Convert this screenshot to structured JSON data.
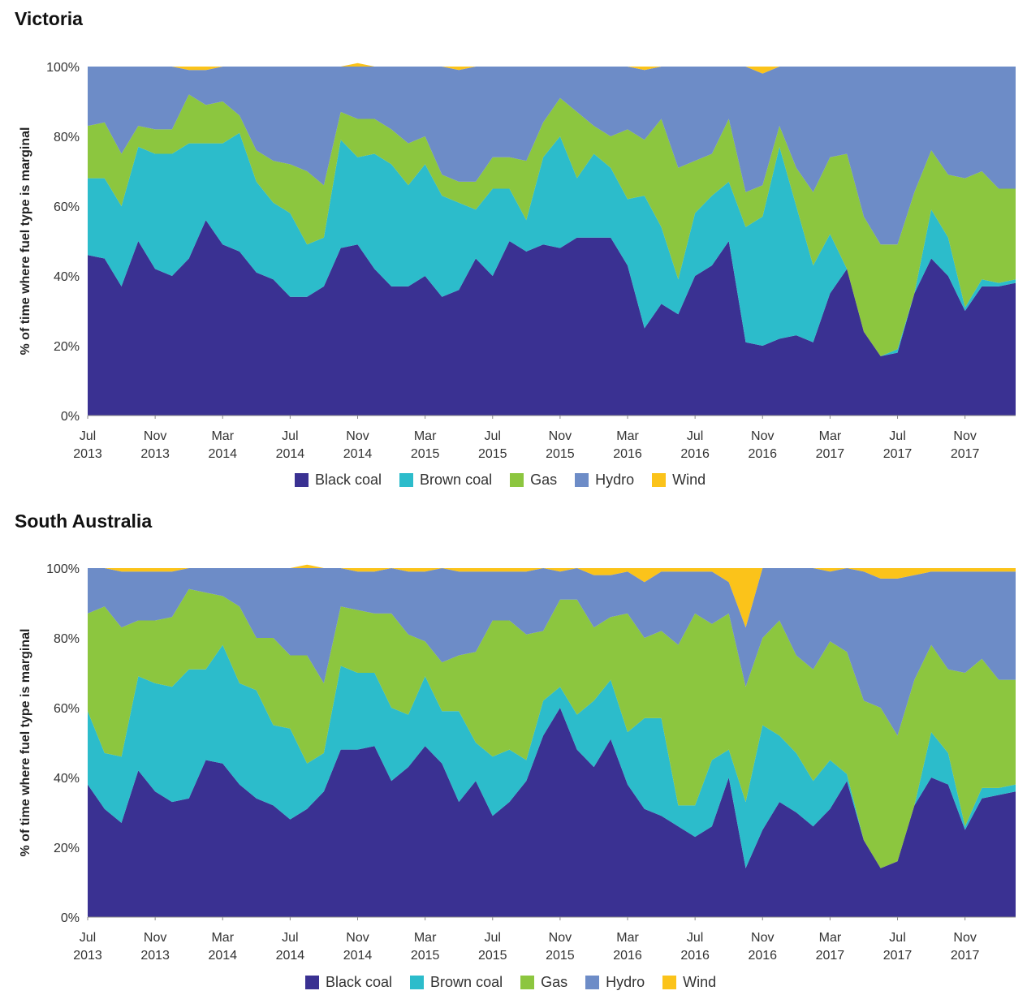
{
  "colors": {
    "Black coal": "#3a3192",
    "Brown coal": "#2cbccb",
    "Gas": "#8cc63f",
    "Hydro": "#6d8cc7",
    "Wind": "#fbc31a"
  },
  "panels": [
    {
      "title": "Victoria"
    },
    {
      "title": "South Australia"
    }
  ],
  "chart_data": [
    {
      "type": "area",
      "title": "Victoria",
      "ylabel": "% of time where fuel type is marginal",
      "ylim": [
        0,
        100
      ],
      "yticks": [
        "0%",
        "20%",
        "40%",
        "60%",
        "80%",
        "100%"
      ],
      "xticks": [
        {
          "month": "Jul",
          "year": "2013"
        },
        {
          "month": "Nov",
          "year": "2013"
        },
        {
          "month": "Mar",
          "year": "2014"
        },
        {
          "month": "Jul",
          "year": "2014"
        },
        {
          "month": "Nov",
          "year": "2014"
        },
        {
          "month": "Mar",
          "year": "2015"
        },
        {
          "month": "Jul",
          "year": "2015"
        },
        {
          "month": "Nov",
          "year": "2015"
        },
        {
          "month": "Mar",
          "year": "2016"
        },
        {
          "month": "Jul",
          "year": "2016"
        },
        {
          "month": "Nov",
          "year": "2016"
        },
        {
          "month": "Mar",
          "year": "2017"
        },
        {
          "month": "Jul",
          "year": "2017"
        },
        {
          "month": "Nov",
          "year": "2017"
        }
      ],
      "x": [
        "Jul 2013",
        "Aug 2013",
        "Sep 2013",
        "Oct 2013",
        "Nov 2013",
        "Dec 2013",
        "Jan 2014",
        "Feb 2014",
        "Mar 2014",
        "Apr 2014",
        "May 2014",
        "Jun 2014",
        "Jul 2014",
        "Aug 2014",
        "Sep 2014",
        "Oct 2014",
        "Nov 2014",
        "Dec 2014",
        "Jan 2015",
        "Feb 2015",
        "Mar 2015",
        "Apr 2015",
        "May 2015",
        "Jun 2015",
        "Jul 2015",
        "Aug 2015",
        "Sep 2015",
        "Oct 2015",
        "Nov 2015",
        "Dec 2015",
        "Jan 2016",
        "Feb 2016",
        "Mar 2016",
        "Apr 2016",
        "May 2016",
        "Jun 2016",
        "Jul 2016",
        "Aug 2016",
        "Sep 2016",
        "Oct 2016",
        "Nov 2016",
        "Dec 2016",
        "Jan 2017",
        "Feb 2017",
        "Mar 2017",
        "Apr 2017",
        "May 2017",
        "Jun 2017",
        "Jul 2017",
        "Aug 2017",
        "Sep 2017",
        "Oct 2017",
        "Nov 2017",
        "Dec 2017",
        "Jan 2018",
        "Feb 2018"
      ],
      "series": [
        {
          "name": "Black coal",
          "values": [
            46,
            45,
            37,
            50,
            42,
            40,
            45,
            56,
            49,
            47,
            41,
            39,
            34,
            34,
            37,
            48,
            49,
            42,
            37,
            37,
            40,
            34,
            36,
            45,
            40,
            50,
            47,
            49,
            48,
            51,
            51,
            51,
            43,
            25,
            32,
            29,
            40,
            43,
            50,
            21,
            20,
            22,
            23,
            21,
            35,
            42,
            24,
            17,
            18,
            35,
            45,
            40,
            30,
            37,
            37,
            38
          ]
        },
        {
          "name": "Brown coal",
          "values": [
            22,
            23,
            23,
            27,
            33,
            35,
            33,
            22,
            29,
            34,
            26,
            22,
            24,
            15,
            14,
            31,
            25,
            33,
            35,
            29,
            32,
            29,
            25,
            14,
            25,
            15,
            9,
            25,
            32,
            17,
            24,
            20,
            19,
            38,
            22,
            10,
            18,
            20,
            17,
            33,
            37,
            55,
            37,
            22,
            17,
            0,
            0,
            0,
            1,
            0,
            14,
            11,
            1,
            2,
            1,
            1
          ]
        },
        {
          "name": "Gas",
          "values": [
            15,
            16,
            15,
            6,
            7,
            7,
            14,
            11,
            12,
            5,
            9,
            12,
            14,
            21,
            15,
            8,
            11,
            10,
            10,
            12,
            8,
            6,
            6,
            8,
            9,
            9,
            17,
            10,
            11,
            19,
            8,
            9,
            20,
            16,
            31,
            32,
            15,
            12,
            18,
            10,
            9,
            6,
            11,
            21,
            22,
            33,
            33,
            32,
            30,
            29,
            17,
            18,
            37,
            31,
            27,
            26
          ]
        },
        {
          "name": "Hydro",
          "values": [
            17,
            16,
            25,
            17,
            18,
            18,
            7,
            10,
            10,
            14,
            24,
            27,
            28,
            30,
            34,
            13,
            15,
            15,
            18,
            22,
            20,
            31,
            32,
            33,
            26,
            26,
            27,
            16,
            9,
            13,
            17,
            20,
            18,
            20,
            15,
            29,
            27,
            25,
            15,
            36,
            32,
            17,
            29,
            36,
            26,
            25,
            43,
            51,
            51,
            36,
            24,
            31,
            32,
            30,
            35,
            35
          ]
        },
        {
          "name": "Wind",
          "values": [
            0,
            0,
            0,
            0,
            0,
            0,
            1,
            1,
            0,
            0,
            0,
            0,
            0,
            0,
            0,
            0,
            1,
            0,
            0,
            0,
            0,
            0,
            1,
            0,
            0,
            0,
            0,
            0,
            0,
            0,
            0,
            0,
            0,
            1,
            0,
            0,
            0,
            0,
            0,
            0,
            2,
            0,
            0,
            0,
            0,
            0,
            0,
            0,
            0,
            0,
            0,
            0,
            0,
            0,
            0,
            0
          ]
        }
      ],
      "legend": [
        "Black coal",
        "Brown coal",
        "Gas",
        "Hydro",
        "Wind"
      ]
    },
    {
      "type": "area",
      "title": "South Australia",
      "ylabel": "% of time where fuel type is marginal",
      "ylim": [
        0,
        100
      ],
      "yticks": [
        "0%",
        "20%",
        "40%",
        "60%",
        "80%",
        "100%"
      ],
      "xticks": [
        {
          "month": "Jul",
          "year": "2013"
        },
        {
          "month": "Nov",
          "year": "2013"
        },
        {
          "month": "Mar",
          "year": "2014"
        },
        {
          "month": "Jul",
          "year": "2014"
        },
        {
          "month": "Nov",
          "year": "2014"
        },
        {
          "month": "Mar",
          "year": "2015"
        },
        {
          "month": "Jul",
          "year": "2015"
        },
        {
          "month": "Nov",
          "year": "2015"
        },
        {
          "month": "Mar",
          "year": "2016"
        },
        {
          "month": "Jul",
          "year": "2016"
        },
        {
          "month": "Nov",
          "year": "2016"
        },
        {
          "month": "Mar",
          "year": "2017"
        },
        {
          "month": "Jul",
          "year": "2017"
        },
        {
          "month": "Nov",
          "year": "2017"
        }
      ],
      "x": [
        "Jul 2013",
        "Aug 2013",
        "Sep 2013",
        "Oct 2013",
        "Nov 2013",
        "Dec 2013",
        "Jan 2014",
        "Feb 2014",
        "Mar 2014",
        "Apr 2014",
        "May 2014",
        "Jun 2014",
        "Jul 2014",
        "Aug 2014",
        "Sep 2014",
        "Oct 2014",
        "Nov 2014",
        "Dec 2014",
        "Jan 2015",
        "Feb 2015",
        "Mar 2015",
        "Apr 2015",
        "May 2015",
        "Jun 2015",
        "Jul 2015",
        "Aug 2015",
        "Sep 2015",
        "Oct 2015",
        "Nov 2015",
        "Dec 2015",
        "Jan 2016",
        "Feb 2016",
        "Mar 2016",
        "Apr 2016",
        "May 2016",
        "Jun 2016",
        "Jul 2016",
        "Aug 2016",
        "Sep 2016",
        "Oct 2016",
        "Nov 2016",
        "Dec 2016",
        "Jan 2017",
        "Feb 2017",
        "Mar 2017",
        "Apr 2017",
        "May 2017",
        "Jun 2017",
        "Jul 2017",
        "Aug 2017",
        "Sep 2017",
        "Oct 2017",
        "Nov 2017",
        "Dec 2017",
        "Jan 2018",
        "Feb 2018"
      ],
      "series": [
        {
          "name": "Black coal",
          "values": [
            38,
            31,
            27,
            42,
            36,
            33,
            34,
            45,
            44,
            38,
            34,
            32,
            28,
            31,
            36,
            48,
            48,
            49,
            39,
            43,
            49,
            44,
            33,
            39,
            29,
            33,
            39,
            52,
            60,
            48,
            43,
            51,
            38,
            31,
            29,
            26,
            23,
            26,
            40,
            14,
            25,
            33,
            30,
            26,
            31,
            39,
            22,
            14,
            16,
            32,
            40,
            38,
            25,
            34,
            35,
            36
          ]
        },
        {
          "name": "Brown coal",
          "values": [
            21,
            16,
            19,
            27,
            31,
            33,
            37,
            26,
            34,
            29,
            31,
            23,
            26,
            13,
            11,
            24,
            22,
            21,
            21,
            15,
            20,
            15,
            26,
            11,
            17,
            15,
            6,
            10,
            6,
            10,
            19,
            17,
            15,
            26,
            28,
            6,
            9,
            19,
            8,
            19,
            30,
            19,
            17,
            13,
            14,
            2,
            0,
            0,
            0,
            0,
            13,
            9,
            1,
            3,
            2,
            2
          ]
        },
        {
          "name": "Gas",
          "values": [
            28,
            42,
            37,
            16,
            18,
            20,
            23,
            22,
            14,
            22,
            15,
            25,
            21,
            31,
            20,
            17,
            18,
            17,
            27,
            23,
            10,
            14,
            16,
            26,
            39,
            37,
            36,
            20,
            25,
            33,
            21,
            18,
            34,
            23,
            25,
            46,
            55,
            39,
            39,
            33,
            25,
            33,
            28,
            32,
            34,
            35,
            40,
            46,
            36,
            36,
            25,
            24,
            44,
            37,
            31,
            30
          ]
        },
        {
          "name": "Hydro",
          "values": [
            13,
            11,
            16,
            14,
            14,
            13,
            6,
            7,
            8,
            11,
            20,
            20,
            25,
            25,
            33,
            11,
            11,
            12,
            13,
            18,
            20,
            27,
            24,
            23,
            14,
            14,
            18,
            18,
            8,
            9,
            15,
            12,
            12,
            16,
            17,
            21,
            12,
            15,
            9,
            17,
            20,
            15,
            25,
            29,
            20,
            24,
            37,
            37,
            45,
            30,
            21,
            28,
            29,
            25,
            31,
            31
          ]
        },
        {
          "name": "Wind",
          "values": [
            0,
            0,
            1,
            1,
            1,
            1,
            0,
            0,
            0,
            0,
            0,
            0,
            0,
            1,
            0,
            0,
            1,
            1,
            0,
            1,
            1,
            0,
            1,
            1,
            1,
            1,
            1,
            0,
            1,
            0,
            2,
            2,
            1,
            4,
            1,
            1,
            1,
            1,
            4,
            17,
            0,
            0,
            0,
            0,
            1,
            0,
            1,
            3,
            3,
            2,
            1,
            1,
            1,
            1,
            1,
            1
          ]
        }
      ],
      "legend": [
        "Black coal",
        "Brown coal",
        "Gas",
        "Hydro",
        "Wind"
      ]
    }
  ]
}
